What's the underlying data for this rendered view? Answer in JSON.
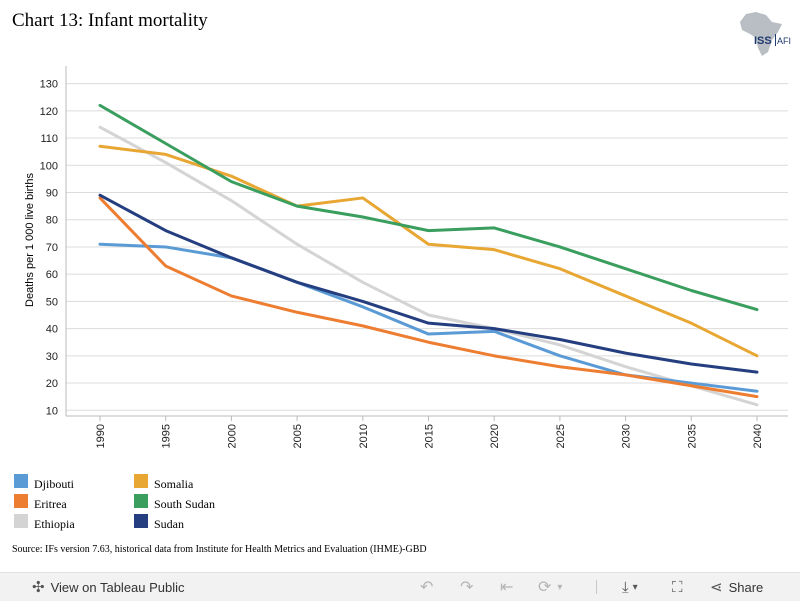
{
  "title": "Chart 13: Infant mortality",
  "logo": {
    "text": "ISS",
    "subtext": "AFI"
  },
  "source": "Source: IFs version 7.63, historical data from Institute for Health Metrics and Evaluation (IHME)-GBD",
  "toolbar": {
    "view_label": "View on Tableau Public",
    "share_label": "Share",
    "icons": [
      "tableau-logo-icon",
      "undo-icon",
      "redo-icon",
      "revert-icon",
      "refresh-icon",
      "download-icon",
      "fullscreen-icon",
      "share-icon"
    ]
  },
  "chart_data": {
    "type": "line",
    "title": "Chart 13: Infant mortality",
    "xlabel": "",
    "ylabel": "Deaths per 1 000 live births",
    "x": [
      1990,
      1995,
      2000,
      2005,
      2010,
      2015,
      2020,
      2025,
      2030,
      2035,
      2040
    ],
    "x_tick_labels": [
      "1990",
      "1995",
      "2000",
      "2005",
      "2010",
      "2015",
      "2020",
      "2025",
      "2030",
      "2035",
      "2040"
    ],
    "y_ticks": [
      10,
      20,
      30,
      40,
      50,
      60,
      70,
      80,
      90,
      100,
      110,
      120,
      130
    ],
    "ylim": [
      9,
      135
    ],
    "grid": true,
    "legend_position": "bottom-left",
    "series": [
      {
        "name": "Djibouti",
        "color": "#5b9bd5",
        "values": [
          71,
          70,
          66,
          57,
          48,
          38,
          39,
          30,
          23,
          20,
          17
        ]
      },
      {
        "name": "Eritrea",
        "color": "#ed7d31",
        "values": [
          88,
          63,
          52,
          46,
          41,
          35,
          30,
          26,
          23,
          19,
          15
        ]
      },
      {
        "name": "Ethiopia",
        "color": "#d4d4d4",
        "values": [
          114,
          101,
          87,
          71,
          57,
          45,
          40,
          34,
          26,
          19,
          12
        ]
      },
      {
        "name": "Somalia",
        "color": "#e8a633",
        "values": [
          107,
          104,
          96,
          85,
          88,
          71,
          69,
          62,
          52,
          42,
          30
        ]
      },
      {
        "name": "South Sudan",
        "color": "#3a9e5f",
        "values": [
          122,
          108,
          94,
          85,
          81,
          76,
          77,
          70,
          62,
          54,
          47
        ]
      },
      {
        "name": "Sudan",
        "color": "#253e80",
        "values": [
          89,
          76,
          66,
          57,
          50,
          42,
          40,
          36,
          31,
          27,
          24
        ]
      }
    ]
  }
}
